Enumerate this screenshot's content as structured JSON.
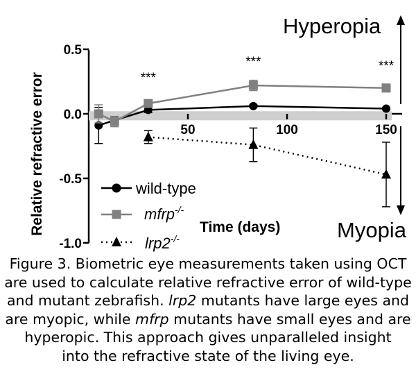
{
  "chart_data": {
    "type": "line",
    "xlabel": "Time (days)",
    "ylabel": "Relative refractive error",
    "xlim": [
      0,
      155
    ],
    "ylim": [
      -1.0,
      0.5
    ],
    "x_ticks": [
      "50",
      "100",
      "150"
    ],
    "y_ticks": [
      "0.5",
      "0.0",
      "-0.5",
      "-1.0"
    ],
    "significance_marks": [
      {
        "x": 30,
        "text": "***"
      },
      {
        "x": 83,
        "text": "***"
      },
      {
        "x": 150,
        "text": "***"
      }
    ],
    "annotations": {
      "top": "Hyperopia",
      "bottom": "Myopia"
    },
    "shaded_band": [
      -0.05,
      0.02
    ],
    "series": [
      {
        "name_base": "wild-type",
        "sup": "",
        "color": "#000000",
        "line": "solid",
        "marker": "circle",
        "x": [
          5,
          13,
          30,
          83,
          150
        ],
        "y": [
          -0.09,
          -0.05,
          0.03,
          0.06,
          0.04
        ],
        "err": [
          0.14,
          0.03,
          0.02,
          0.01,
          0.01
        ]
      },
      {
        "name_base": "mfrp",
        "sup": "-/-",
        "color": "#808080",
        "line": "solid",
        "marker": "square",
        "x": [
          5,
          13,
          30,
          83,
          150
        ],
        "y": [
          0.0,
          -0.06,
          0.08,
          0.22,
          0.2
        ],
        "err": [
          0.07,
          0.04,
          0.02,
          0.04,
          0.03
        ]
      },
      {
        "name_base": "lrp2",
        "sup": "-/-",
        "color": "#000000",
        "line": "dotted",
        "marker": "triangle",
        "x": [
          30,
          83,
          150
        ],
        "y": [
          -0.18,
          -0.24,
          -0.47
        ],
        "err": [
          0.05,
          0.13,
          0.25
        ]
      }
    ]
  },
  "caption": {
    "line1": "Figure 3. Biometric eye measurements taken using OCT",
    "line2": "are used to calculate relative refractive error of wild-type",
    "line3a": "and mutant zebrafish. ",
    "line3b": "lrp2",
    "line3c": " mutants have large eyes and",
    "line4a": "are myopic, while ",
    "line4b": "mfrp",
    "line4c": " mutants have small eyes and are",
    "line5": "hyperopic. This approach gives unparalleled insight",
    "line6": "into the refractive state of the living eye."
  }
}
